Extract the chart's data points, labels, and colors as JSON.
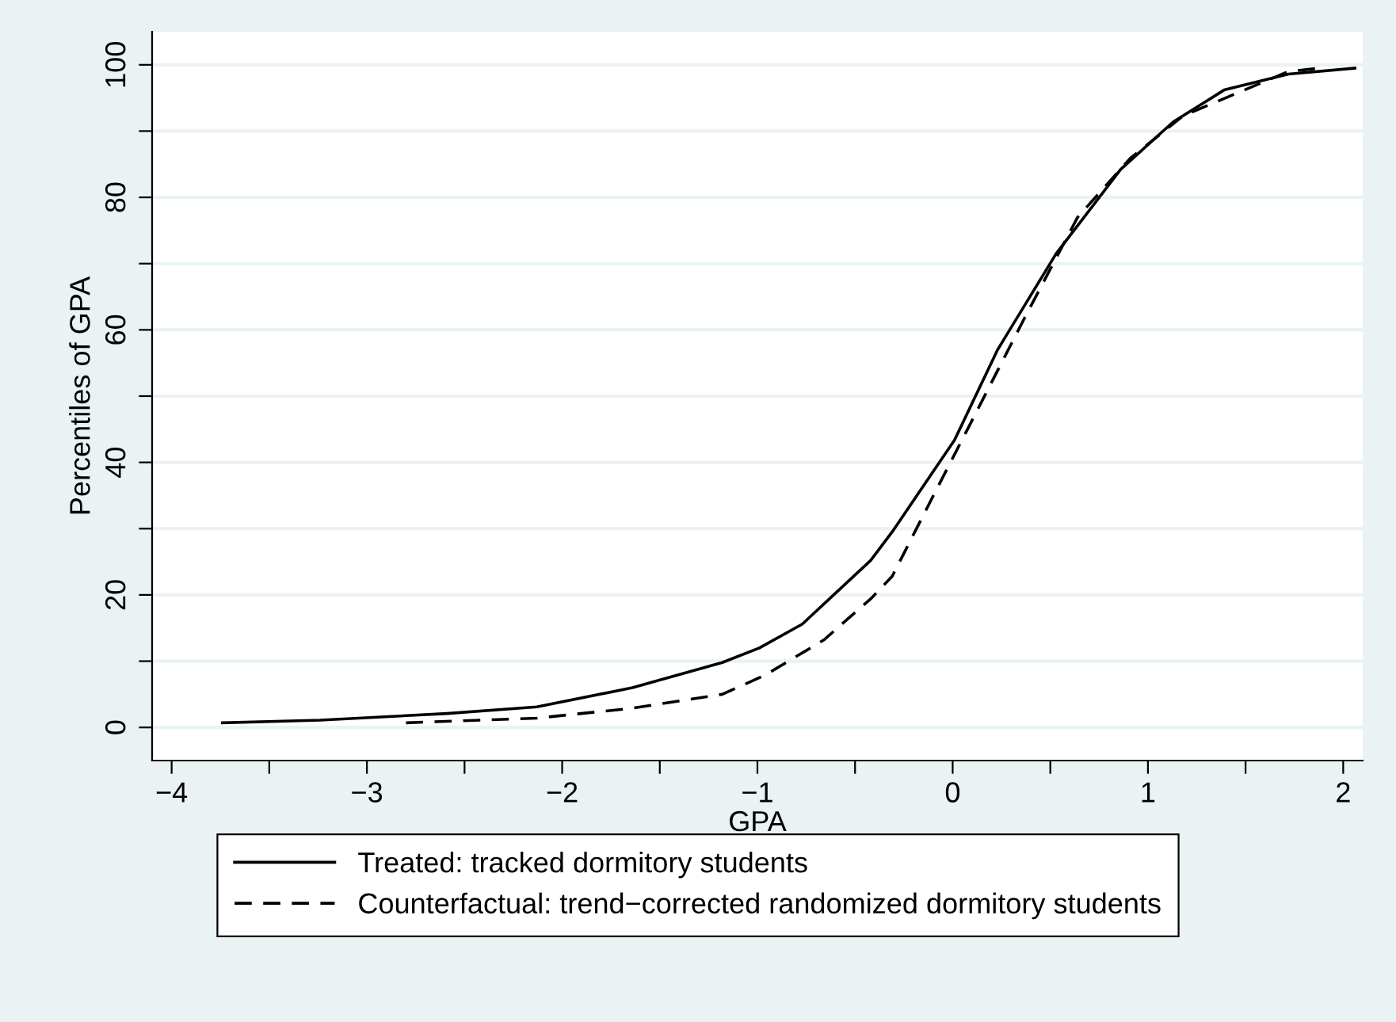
{
  "chart_data": {
    "type": "line",
    "xlabel": "GPA",
    "ylabel": "Percentiles of GPA",
    "xlim": [
      -4.1,
      2.1
    ],
    "ylim": [
      -5,
      105
    ],
    "xticks": [
      {
        "value": -4,
        "label": "−4"
      },
      {
        "value": -3.5,
        "label": null
      },
      {
        "value": -3,
        "label": "−3"
      },
      {
        "value": -2.5,
        "label": null
      },
      {
        "value": -2,
        "label": "−2"
      },
      {
        "value": -1.5,
        "label": null
      },
      {
        "value": -1,
        "label": "−1"
      },
      {
        "value": -0.5,
        "label": null
      },
      0,
      {
        "value": 0.5,
        "label": null
      },
      1,
      {
        "value": 1.5,
        "label": null
      },
      2
    ],
    "yticks": [
      0,
      {
        "value": 10,
        "label": null
      },
      20,
      {
        "value": 30,
        "label": null
      },
      40,
      {
        "value": 50,
        "label": null
      },
      60,
      {
        "value": 70,
        "label": null
      },
      80,
      {
        "value": 90,
        "label": null
      },
      100
    ],
    "grid": "y",
    "legend": "bottom",
    "marker": "none",
    "series": [
      {
        "name": "Treated: tracked dormitory students",
        "color": "#000000",
        "line_style": "solid",
        "x": [
          -3.74,
          -3.24,
          -2.59,
          -2.13,
          -1.64,
          -1.18,
          -0.99,
          -0.77,
          -0.42,
          -0.31,
          0.01,
          0.23,
          0.53,
          0.86,
          1.13,
          1.39,
          1.72,
          2.06
        ],
        "values": [
          0.7,
          1.1,
          2.1,
          3.1,
          6.0,
          9.8,
          12,
          15.6,
          25.2,
          29.5,
          43.4,
          57,
          71.5,
          84.2,
          91.4,
          96.2,
          98.6,
          99.5
        ]
      },
      {
        "name": "Counterfactual: trend−corrected randomized dormitory students",
        "color": "#000000",
        "line_style": "dashed",
        "x": [
          -2.8,
          -2.13,
          -1.64,
          -1.18,
          -0.96,
          -0.66,
          -0.42,
          -0.31,
          -0.09,
          0.09,
          0.37,
          0.64,
          0.91,
          1.18,
          1.72,
          1.88
        ],
        "values": [
          0.7,
          1.4,
          2.9,
          5.0,
          7.9,
          13.2,
          19.4,
          22.8,
          35.5,
          45.8,
          61.9,
          77,
          85.9,
          92.3,
          99,
          99.5
        ]
      }
    ]
  }
}
